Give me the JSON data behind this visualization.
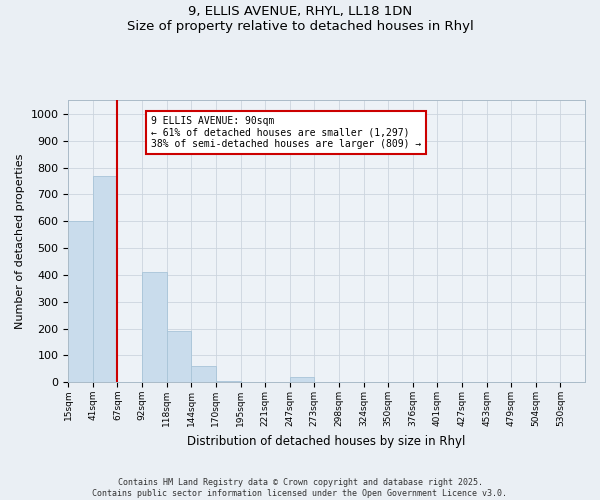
{
  "title_line1": "9, ELLIS AVENUE, RHYL, LL18 1DN",
  "title_line2": "Size of property relative to detached houses in Rhyl",
  "xlabel": "Distribution of detached houses by size in Rhyl",
  "ylabel": "Number of detached properties",
  "bin_labels": [
    "15sqm",
    "41sqm",
    "67sqm",
    "92sqm",
    "118sqm",
    "144sqm",
    "170sqm",
    "195sqm",
    "221sqm",
    "247sqm",
    "273sqm",
    "298sqm",
    "324sqm",
    "350sqm",
    "376sqm",
    "401sqm",
    "427sqm",
    "453sqm",
    "479sqm",
    "504sqm",
    "530sqm"
  ],
  "bar_values": [
    600,
    770,
    0,
    410,
    190,
    60,
    5,
    0,
    0,
    20,
    0,
    0,
    0,
    0,
    0,
    0,
    0,
    0,
    0,
    0,
    0
  ],
  "bar_color": "#c9dcec",
  "bar_edge_color": "#a8c4d8",
  "vline_x_bin": 2,
  "annotation_text_line1": "9 ELLIS AVENUE: 90sqm",
  "annotation_text_line2": "← 61% of detached houses are smaller (1,297)",
  "annotation_text_line3": "38% of semi-detached houses are larger (809) →",
  "annotation_box_color": "#ffffff",
  "annotation_box_edge_color": "#cc0000",
  "vline_color": "#cc0000",
  "ylim": [
    0,
    1050
  ],
  "yticks": [
    0,
    100,
    200,
    300,
    400,
    500,
    600,
    700,
    800,
    900,
    1000
  ],
  "footer_line1": "Contains HM Land Registry data © Crown copyright and database right 2025.",
  "footer_line2": "Contains public sector information licensed under the Open Government Licence v3.0.",
  "bg_color": "#eaeff4",
  "plot_bg_color": "#edf2f7",
  "grid_color": "#ccd5de",
  "title_fontsize": 9.5,
  "ylabel_fontsize": 8,
  "xlabel_fontsize": 8.5
}
